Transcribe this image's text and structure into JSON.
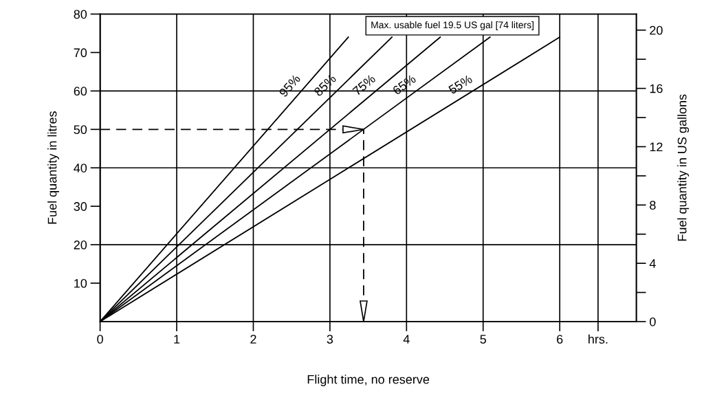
{
  "chart_data": {
    "type": "line",
    "xlabel": "Flight time, no reserve",
    "ylabel": "Fuel quantity in litres",
    "y2label": "Fuel quantity in US gallons",
    "series": [
      {
        "name": "95%",
        "color": "#000000",
        "x": [
          0,
          3.24
        ],
        "values": [
          0,
          74
        ]
      },
      {
        "name": "85%",
        "color": "#000000",
        "x": [
          0,
          3.81
        ],
        "values": [
          0,
          74
        ]
      },
      {
        "name": "75%",
        "color": "#000000",
        "x": [
          0,
          4.44
        ],
        "values": [
          0,
          74
        ]
      },
      {
        "name": "65%",
        "color": "#000000",
        "x": [
          0,
          5.09
        ],
        "values": [
          0,
          74
        ]
      },
      {
        "name": "55%",
        "color": "#000000",
        "x": [
          0,
          6.0
        ],
        "values": [
          0,
          74
        ]
      },
      {
        "color": "#000000",
        "x": [
          0,
          3.44,
          3.44
        ],
        "values": [
          50,
          50,
          0
        ],
        "line_style": "dashed"
      }
    ],
    "annotations": [
      "Max. usable fuel 19.5 US gal [74 liters]"
    ],
    "ref_lines": [
      {
        "axis": "y",
        "value": 20
      },
      {
        "axis": "y",
        "value": 40
      },
      {
        "axis": "y",
        "value": 60
      }
    ],
    "xlim": [
      0,
      7
    ],
    "ylim": [
      0,
      80
    ],
    "y2lim": [
      0,
      21.1
    ],
    "xticks": [
      0,
      1,
      2,
      3,
      4,
      5,
      6,
      {
        "value": 6.5,
        "label": "hrs."
      }
    ],
    "yticks": [
      10,
      20,
      30,
      40,
      50,
      60,
      70,
      80
    ],
    "y2ticks": [
      0,
      {
        "value": 2,
        "label": null
      },
      4,
      {
        "value": 6,
        "label": null
      },
      8,
      {
        "value": 10,
        "label": null
      },
      12,
      {
        "value": 14,
        "label": null
      },
      16,
      {
        "value": 18,
        "label": null
      },
      20
    ],
    "grid": "x",
    "marker": "none",
    "line_style": "solid",
    "legend": false
  }
}
